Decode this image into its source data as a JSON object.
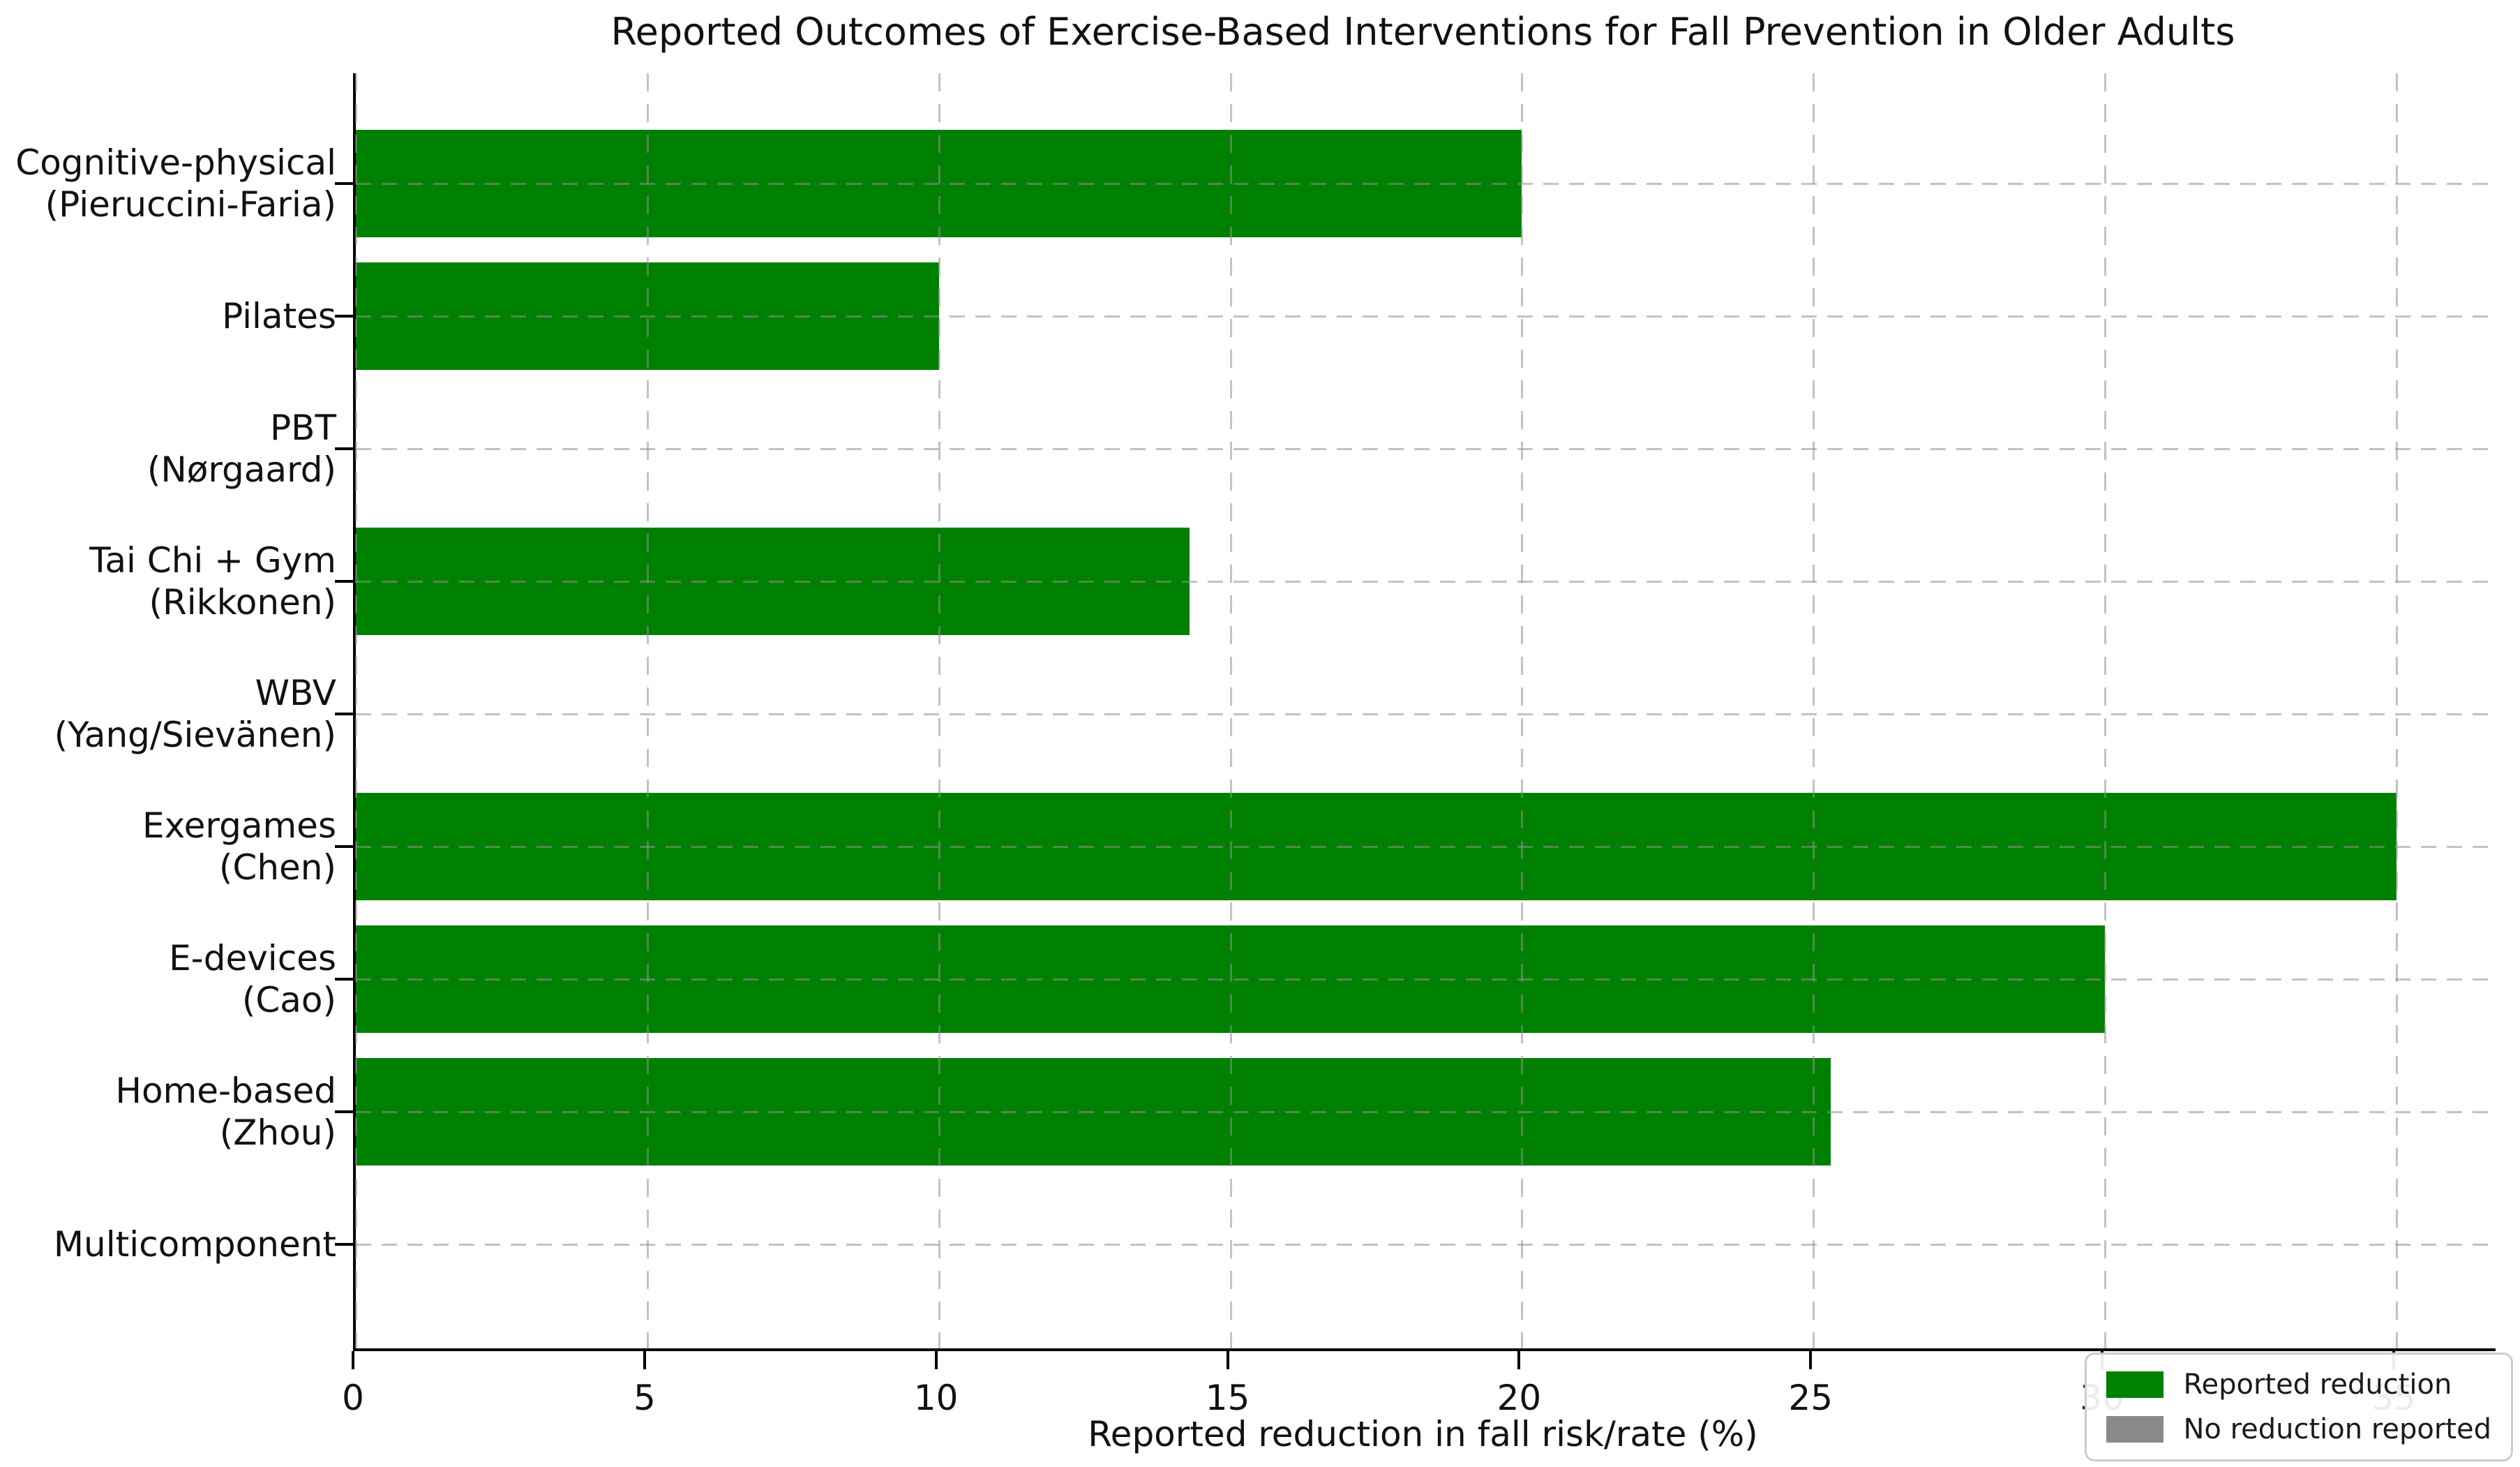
{
  "chart_data": {
    "type": "bar",
    "orientation": "horizontal",
    "title": "Reported Outcomes of Exercise-Based Interventions for Fall Prevention in Older Adults",
    "xlabel": "Reported reduction in fall risk/rate (%)",
    "ylabel": "",
    "xlim": [
      0,
      36.7
    ],
    "x_ticks": [
      0,
      5,
      10,
      15,
      20,
      25,
      30,
      35
    ],
    "grid": "both-dashed",
    "legend_position": "lower right",
    "categories": [
      [
        "Cognitive-physical",
        "(Pieruccini-Faria)"
      ],
      [
        "Pilates"
      ],
      [
        "PBT",
        "(Nørgaard)"
      ],
      [
        "Tai Chi + Gym",
        "(Rikkonen)"
      ],
      [
        "WBV",
        "(Yang/Sievänen)"
      ],
      [
        "Exergames",
        "(Chen)"
      ],
      [
        "E-devices",
        "(Cao)"
      ],
      [
        "Home-based",
        "(Zhou)"
      ],
      [
        "Multicomponent"
      ]
    ],
    "values": [
      20,
      10,
      0,
      14.3,
      0,
      35,
      30,
      25.3,
      0
    ],
    "reduction_reported": [
      true,
      true,
      false,
      true,
      false,
      true,
      true,
      true,
      false
    ]
  },
  "colors": {
    "reported": "#008000",
    "none": "#8a8a8a",
    "grid": "#c7c7c7",
    "spine": "#000000"
  },
  "legend": {
    "items": [
      {
        "label": "Reported reduction",
        "color": "#008000"
      },
      {
        "label": "No reduction reported",
        "color": "#8a8a8a"
      }
    ]
  }
}
